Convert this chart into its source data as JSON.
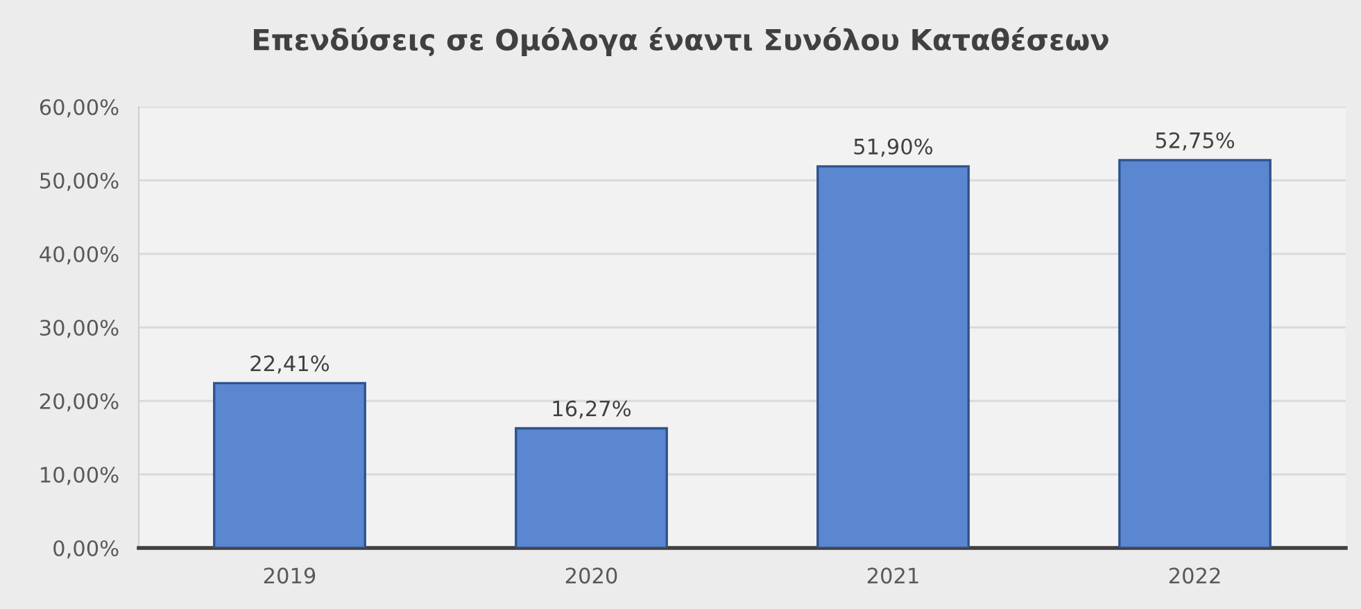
{
  "chart_data": {
    "type": "bar",
    "title": "Επενδύσεις σε Ομόλογα έναντι Συνόλου Καταθέσεων",
    "categories": [
      "2019",
      "2020",
      "2021",
      "2022"
    ],
    "values": [
      22.41,
      16.27,
      51.9,
      52.75
    ],
    "color": "#5b86d0",
    "value_labels": [
      "22,41%",
      "16,27%",
      "51,90%",
      "52,75%"
    ],
    "ylim": [
      0,
      60
    ],
    "yticks": [
      {
        "value": 0,
        "label": "0,00%"
      },
      {
        "value": 10,
        "label": "10,00%"
      },
      {
        "value": 20,
        "label": "20,00%"
      },
      {
        "value": 30,
        "label": "30,00%"
      },
      {
        "value": 40,
        "label": "40,00%"
      },
      {
        "value": 50,
        "label": "50,00%"
      },
      {
        "value": 60,
        "label": "60,00%"
      }
    ],
    "grid": "y",
    "legend": false
  }
}
